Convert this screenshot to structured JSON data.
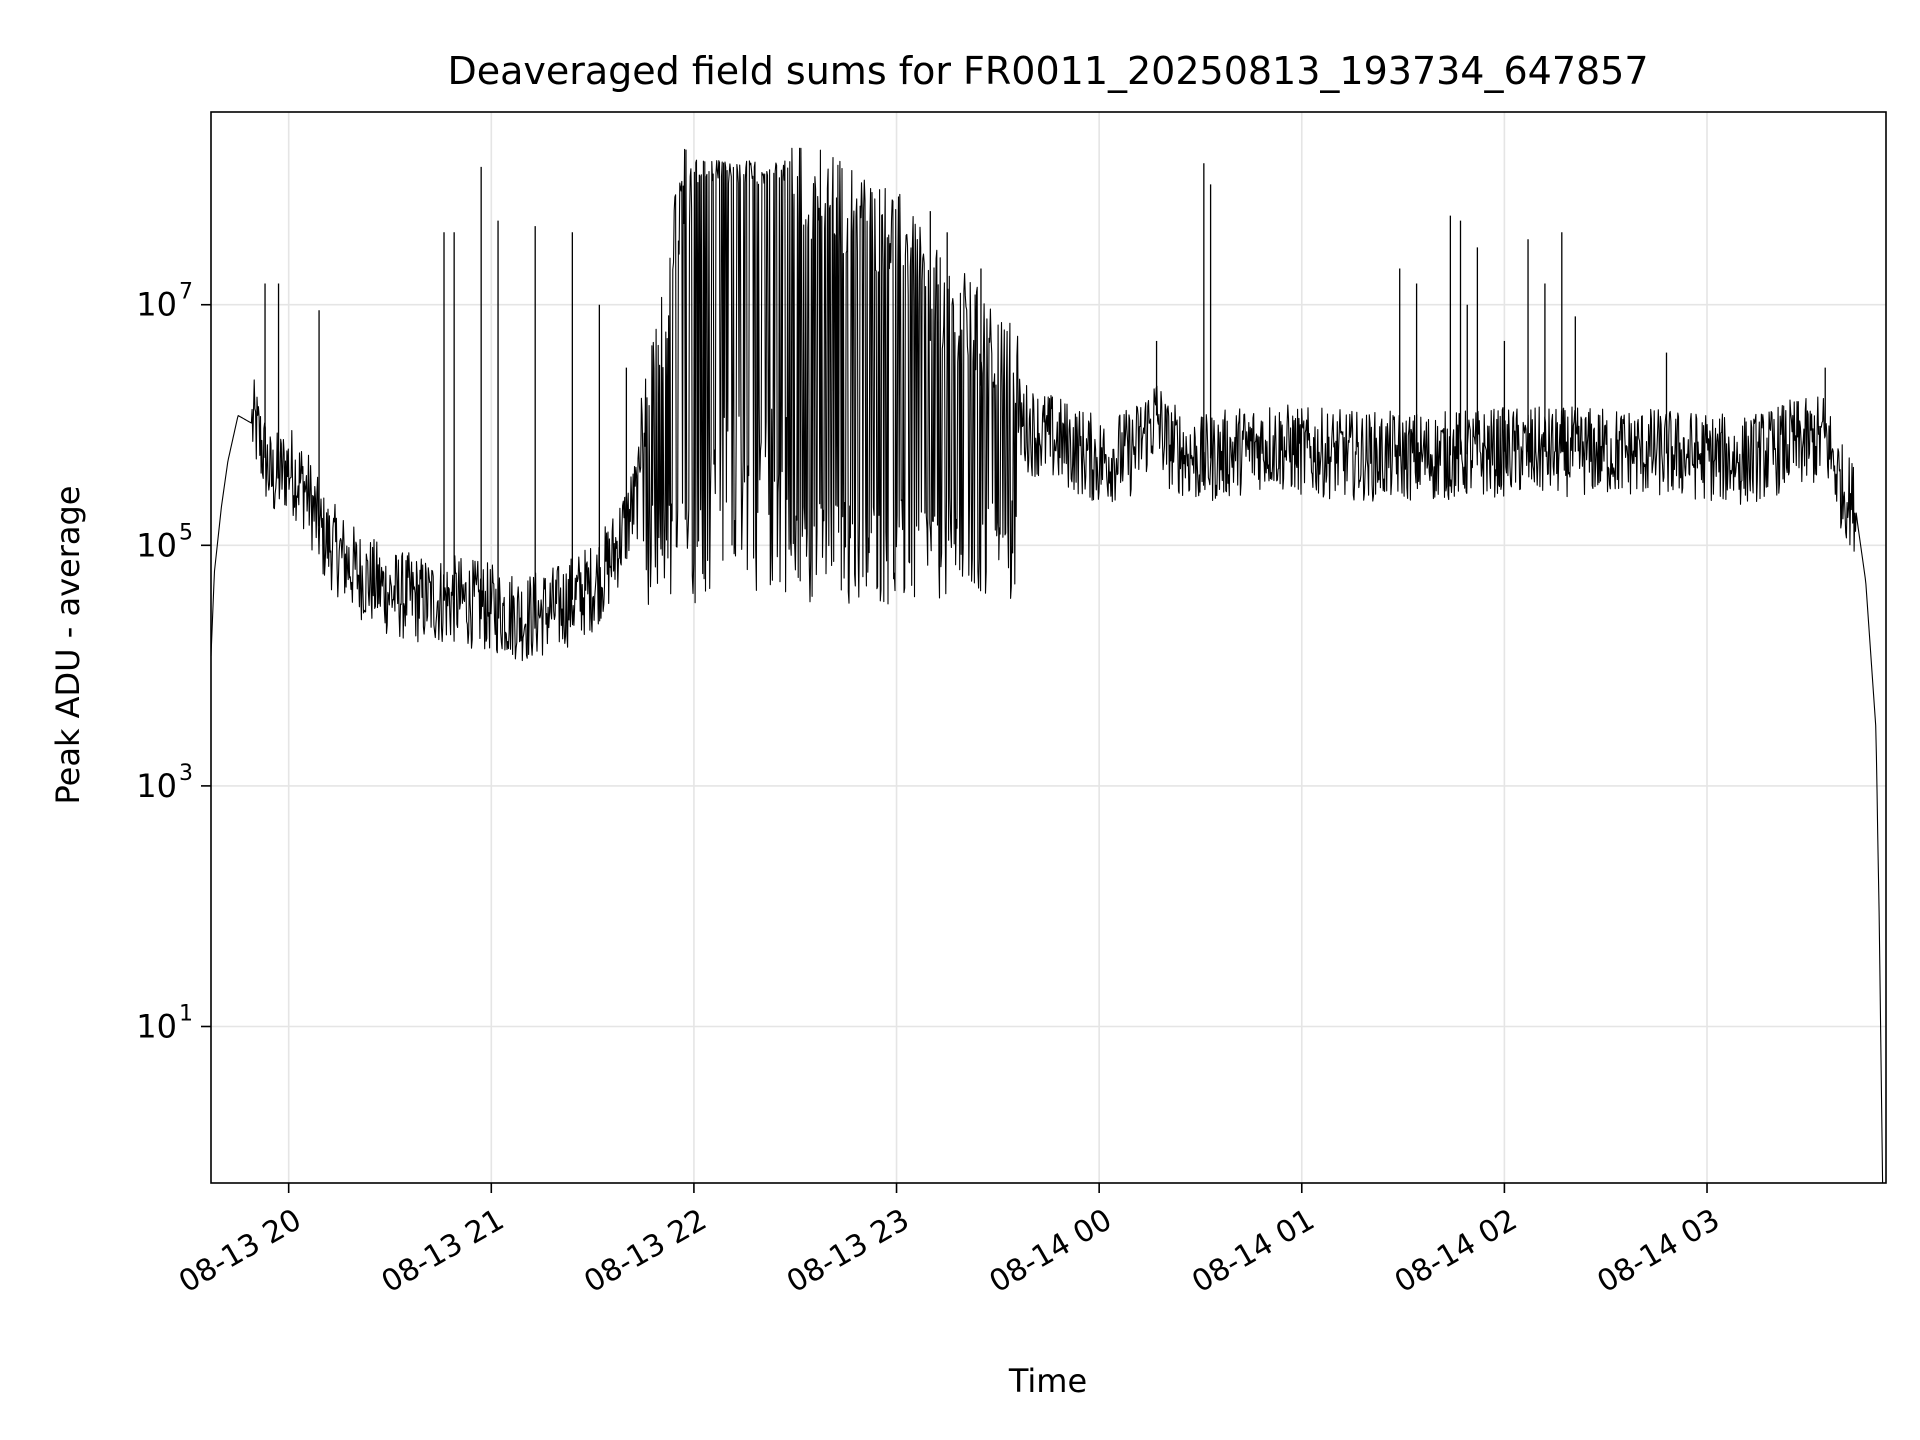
{
  "chart_data": {
    "type": "line",
    "title": "Deaveraged field sums for FR0011_20250813_193734_647857",
    "xlabel": "Time",
    "ylabel": "Peak ADU - average",
    "yscale": "log",
    "grid": true,
    "legend": "none",
    "line_color": "#000000",
    "xlim": [
      "2025-08-13 19:37",
      "2025-08-14 03:53"
    ],
    "ylim": [
      0.5,
      400000000
    ],
    "x_ticks": [
      {
        "value": "2025-08-13 20:00",
        "label": "08-13 20"
      },
      {
        "value": "2025-08-13 21:00",
        "label": "08-13 21"
      },
      {
        "value": "2025-08-13 22:00",
        "label": "08-13 22"
      },
      {
        "value": "2025-08-13 23:00",
        "label": "08-13 23"
      },
      {
        "value": "2025-08-14 00:00",
        "label": "08-14 00"
      },
      {
        "value": "2025-08-14 01:00",
        "label": "08-14 01"
      },
      {
        "value": "2025-08-14 02:00",
        "label": "08-14 02"
      },
      {
        "value": "2025-08-14 03:00",
        "label": "08-14 03"
      }
    ],
    "y_ticks": [
      {
        "value": 10,
        "base": "10",
        "exp": "1"
      },
      {
        "value": 1000,
        "base": "10",
        "exp": "3"
      },
      {
        "value": 100000,
        "base": "10",
        "exp": "5"
      },
      {
        "value": 10000000,
        "base": "10",
        "exp": "7"
      }
    ],
    "series": [
      {
        "x": [
          "2025-08-13 19:37",
          "2025-08-13 19:38",
          "2025-08-13 19:40",
          "2025-08-13 19:42",
          "2025-08-13 19:45",
          "2025-08-13 19:50",
          "2025-08-13 19:55",
          "2025-08-13 20:00",
          "2025-08-13 20:05",
          "2025-08-13 20:10",
          "2025-08-13 20:20",
          "2025-08-13 20:30",
          "2025-08-13 20:40",
          "2025-08-13 20:50",
          "2025-08-13 21:00",
          "2025-08-13 21:10",
          "2025-08-13 21:20",
          "2025-08-13 21:30",
          "2025-08-13 21:35",
          "2025-08-13 21:40",
          "2025-08-13 21:45",
          "2025-08-13 21:50",
          "2025-08-13 21:55",
          "2025-08-13 22:00",
          "2025-08-13 22:10",
          "2025-08-13 22:20",
          "2025-08-13 22:30",
          "2025-08-13 22:40",
          "2025-08-13 22:50",
          "2025-08-13 23:00",
          "2025-08-13 23:10",
          "2025-08-13 23:20",
          "2025-08-13 23:30",
          "2025-08-13 23:40",
          "2025-08-13 23:50",
          "2025-08-14 00:00",
          "2025-08-14 00:10",
          "2025-08-14 00:17",
          "2025-08-14 00:20",
          "2025-08-14 00:30",
          "2025-08-14 00:40",
          "2025-08-14 00:50",
          "2025-08-14 01:00",
          "2025-08-14 01:20",
          "2025-08-14 01:40",
          "2025-08-14 02:00",
          "2025-08-14 02:20",
          "2025-08-14 02:40",
          "2025-08-14 03:00",
          "2025-08-14 03:10",
          "2025-08-14 03:20",
          "2025-08-14 03:25",
          "2025-08-14 03:30",
          "2025-08-14 03:35",
          "2025-08-14 03:40",
          "2025-08-14 03:44",
          "2025-08-14 03:47",
          "2025-08-14 03:50",
          "2025-08-14 03:51",
          "2025-08-14 03:52"
        ],
        "y": [
          12000,
          60000,
          200000,
          500000,
          1200000,
          1000000,
          350000,
          450000,
          300000,
          120000,
          60000,
          40000,
          35000,
          35000,
          30000,
          25000,
          30000,
          45000,
          70000,
          150000,
          350000,
          1500000,
          20000000,
          60000000,
          120000000,
          110000000,
          40000000,
          30000000,
          20000000,
          15000000,
          5000000,
          3000000,
          1500000,
          900000,
          700000,
          500000,
          600000,
          1200000,
          700000,
          500000,
          600000,
          700000,
          600000,
          550000,
          550000,
          600000,
          600000,
          600000,
          550000,
          500000,
          600000,
          700000,
          700000,
          800000,
          300000,
          200000,
          50000,
          3000,
          80,
          0.5
        ]
      }
    ],
    "spikes": [
      {
        "x": "2025-08-13 19:53",
        "y": 15000000
      },
      {
        "x": "2025-08-13 19:57",
        "y": 15000000
      },
      {
        "x": "2025-08-13 20:09",
        "y": 9000000
      },
      {
        "x": "2025-08-13 20:46",
        "y": 40000000
      },
      {
        "x": "2025-08-13 20:49",
        "y": 40000000
      },
      {
        "x": "2025-08-13 20:57",
        "y": 140000000
      },
      {
        "x": "2025-08-13 21:02",
        "y": 50000000
      },
      {
        "x": "2025-08-13 21:13",
        "y": 45000000
      },
      {
        "x": "2025-08-13 21:24",
        "y": 40000000
      },
      {
        "x": "2025-08-13 21:32",
        "y": 10000000
      },
      {
        "x": "2025-08-13 21:40",
        "y": 3000000
      },
      {
        "x": "2025-08-13 23:10",
        "y": 60000000
      },
      {
        "x": "2025-08-13 23:15",
        "y": 40000000
      },
      {
        "x": "2025-08-13 23:25",
        "y": 20000000
      },
      {
        "x": "2025-08-14 00:17",
        "y": 5000000
      },
      {
        "x": "2025-08-14 00:31",
        "y": 150000000
      },
      {
        "x": "2025-08-14 00:33",
        "y": 100000000
      },
      {
        "x": "2025-08-14 01:29",
        "y": 20000000
      },
      {
        "x": "2025-08-14 01:34",
        "y": 15000000
      },
      {
        "x": "2025-08-14 01:44",
        "y": 55000000
      },
      {
        "x": "2025-08-14 01:47",
        "y": 50000000
      },
      {
        "x": "2025-08-14 01:49",
        "y": 10000000
      },
      {
        "x": "2025-08-14 01:52",
        "y": 30000000
      },
      {
        "x": "2025-08-14 02:00",
        "y": 5000000
      },
      {
        "x": "2025-08-14 02:07",
        "y": 35000000
      },
      {
        "x": "2025-08-14 02:12",
        "y": 15000000
      },
      {
        "x": "2025-08-14 02:17",
        "y": 40000000
      },
      {
        "x": "2025-08-14 02:21",
        "y": 8000000
      },
      {
        "x": "2025-08-14 02:48",
        "y": 4000000
      },
      {
        "x": "2025-08-14 03:35",
        "y": 3000000
      }
    ]
  }
}
